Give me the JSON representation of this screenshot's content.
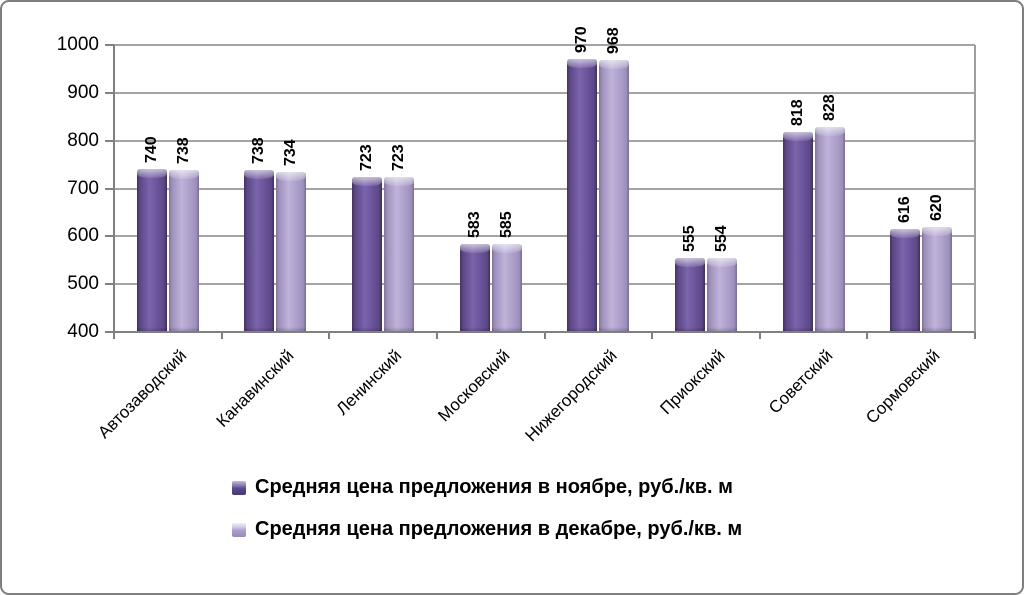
{
  "chart_data": {
    "type": "bar",
    "title": "",
    "categories": [
      "Автозаводский",
      "Канавинский",
      "Ленинский",
      "Московский",
      "Нижегородский",
      "Приокский",
      "Советский",
      "Сормовский"
    ],
    "series": [
      {
        "name": "Средняя цена предложения в ноябре, руб./кв. м",
        "values": [
          740,
          738,
          723,
          583,
          970,
          555,
          818,
          616
        ],
        "color": "#6A549B"
      },
      {
        "name": "Средняя цена предложения в декабре, руб./кв. м",
        "values": [
          738,
          734,
          723,
          585,
          968,
          554,
          828,
          620
        ],
        "color": "#B3A6CE"
      }
    ],
    "ylim": [
      400,
      1000
    ],
    "yticks": [
      400,
      500,
      600,
      700,
      800,
      900,
      1000
    ],
    "xlabel": "",
    "ylabel": "",
    "grid": true,
    "legend_position": "bottom",
    "value_labels": "rotated-vertical-above-bars",
    "colors": {
      "gridline": "#A3A3A3",
      "axis": "#808080",
      "frame_border": "#7F7F7F",
      "text": "#000000",
      "background": "#FFFFFF"
    }
  }
}
